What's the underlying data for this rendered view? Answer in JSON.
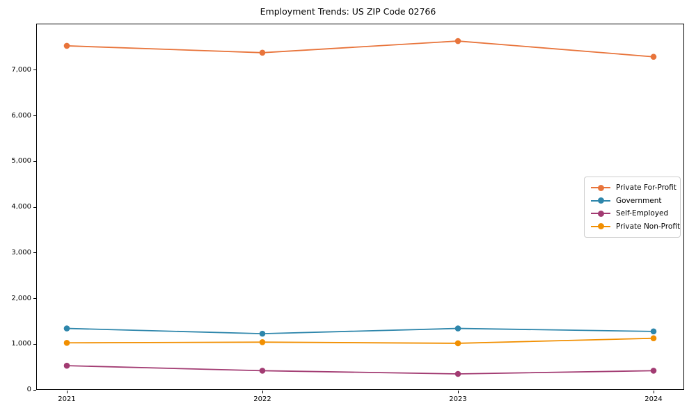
{
  "chart_data": {
    "type": "line",
    "title": "Employment Trends: US ZIP Code 02766",
    "x": [
      "2021",
      "2022",
      "2023",
      "2024"
    ],
    "series": [
      {
        "name": "Private For-Profit",
        "color": "#E8743B",
        "values": [
          7530,
          7380,
          7635,
          7290
        ]
      },
      {
        "name": "Government",
        "color": "#2E86AB",
        "values": [
          1345,
          1230,
          1345,
          1280
        ]
      },
      {
        "name": "Self-Employed",
        "color": "#A23B72",
        "values": [
          530,
          420,
          350,
          420
        ]
      },
      {
        "name": "Private Non-Profit",
        "color": "#F18F01",
        "values": [
          1030,
          1045,
          1020,
          1130
        ]
      }
    ],
    "xlabel": "",
    "ylabel": "",
    "ylim": [
      0,
      8016
    ],
    "yticks": [
      0,
      1000,
      2000,
      3000,
      4000,
      5000,
      6000,
      7000
    ],
    "grid": false,
    "legend_position": "center right",
    "marker": "o",
    "tick_format": "comma"
  }
}
